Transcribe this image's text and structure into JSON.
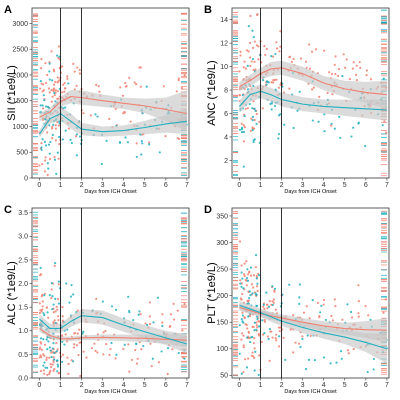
{
  "chart_data": [
    {
      "type": "scatter",
      "panel_label": "A",
      "ylabel": "SII (*1e9/L)",
      "xlabel": "Days from ICH Onset",
      "xlim": [
        -0.35,
        7.1
      ],
      "ylim": [
        0,
        3300
      ],
      "xticks": [
        "0",
        "1",
        "2",
        "3",
        "4",
        "5",
        "6",
        "7"
      ],
      "yticks": [
        "0",
        "500",
        "1000",
        "1500",
        "2000",
        "2500",
        "3000"
      ],
      "ytick_values": [
        0,
        500,
        1000,
        1500,
        2000,
        2500,
        3000
      ],
      "vlines": [
        1,
        2
      ],
      "grid": false,
      "band_color": "#c8c8c8",
      "series": [
        {
          "color": "#f08070",
          "x": [
            0,
            0.5,
            1,
            1.5,
            2,
            3,
            4,
            5,
            6,
            7
          ],
          "y": [
            1180,
            1280,
            1480,
            1580,
            1560,
            1500,
            1450,
            1400,
            1330,
            1250
          ],
          "lower": [
            1100,
            1200,
            1380,
            1450,
            1420,
            1380,
            1340,
            1260,
            1100,
            900
          ],
          "upper": [
            1260,
            1360,
            1580,
            1710,
            1700,
            1620,
            1560,
            1540,
            1560,
            1700
          ]
        },
        {
          "color": "#20b0c0",
          "x": [
            0,
            0.5,
            1,
            1.5,
            2,
            3,
            4,
            5,
            6,
            7
          ],
          "y": [
            850,
            1150,
            1250,
            1100,
            950,
            900,
            920,
            980,
            1050,
            1100
          ],
          "lower": [
            780,
            1050,
            1120,
            950,
            830,
            800,
            820,
            850,
            880,
            850
          ],
          "upper": [
            920,
            1250,
            1380,
            1250,
            1070,
            1000,
            1020,
            1110,
            1220,
            1350
          ]
        }
      ],
      "point_seed": 11
    },
    {
      "type": "scatter",
      "panel_label": "B",
      "ylabel": "ANC (*1e9/L)",
      "xlabel": "Days from ICH Onset",
      "xlim": [
        -0.35,
        7.1
      ],
      "ylim": [
        0.5,
        15
      ],
      "xticks": [
        "0",
        "1",
        "2",
        "3",
        "4",
        "5",
        "6",
        "7"
      ],
      "yticks": [
        "2",
        "4",
        "6",
        "8",
        "10",
        "12",
        "14"
      ],
      "ytick_values": [
        2,
        4,
        6,
        8,
        10,
        12,
        14
      ],
      "vlines": [
        1,
        2
      ],
      "grid": false,
      "band_color": "#c8c8c8",
      "series": [
        {
          "color": "#f08070",
          "x": [
            0,
            0.5,
            1,
            1.5,
            2,
            3,
            4,
            5,
            6,
            7
          ],
          "y": [
            8.3,
            8.8,
            9.4,
            9.8,
            9.9,
            9.4,
            8.6,
            8.1,
            7.8,
            7.6
          ],
          "lower": [
            7.9,
            8.3,
            8.9,
            9.2,
            9.3,
            8.8,
            8.0,
            7.4,
            6.9,
            6.4
          ],
          "upper": [
            8.7,
            9.3,
            9.9,
            10.4,
            10.5,
            10.0,
            9.2,
            8.8,
            8.7,
            8.8
          ]
        },
        {
          "color": "#20b0c0",
          "x": [
            0,
            0.5,
            1,
            1.5,
            2,
            3,
            4,
            5,
            6,
            7
          ],
          "y": [
            6.6,
            7.6,
            7.9,
            7.6,
            7.2,
            6.8,
            6.6,
            6.5,
            6.4,
            6.3
          ],
          "lower": [
            6.1,
            7.0,
            7.3,
            7.0,
            6.6,
            6.2,
            6.0,
            5.8,
            5.6,
            5.4
          ],
          "upper": [
            7.1,
            8.2,
            8.5,
            8.2,
            7.8,
            7.4,
            7.2,
            7.2,
            7.2,
            7.2
          ]
        }
      ],
      "point_seed": 23
    },
    {
      "type": "scatter",
      "panel_label": "C",
      "ylabel": "ALC (*1e9/L)",
      "xlabel": "Days from ICH Onset",
      "xlim": [
        -0.35,
        7.1
      ],
      "ylim": [
        0,
        3.6
      ],
      "xticks": [
        "0",
        "1",
        "2",
        "3",
        "4",
        "5",
        "6",
        "7"
      ],
      "yticks": [
        "0.0",
        "0.5",
        "1.0",
        "1.5",
        "2.0",
        "2.5",
        "3.0",
        "3.5"
      ],
      "ytick_values": [
        0,
        0.5,
        1.0,
        1.5,
        2.0,
        2.5,
        3.0,
        3.5
      ],
      "vlines": [
        1,
        2
      ],
      "grid": false,
      "band_color": "#c8c8c8",
      "series": [
        {
          "color": "#f08070",
          "x": [
            0,
            0.5,
            1,
            1.5,
            2,
            3,
            4,
            5,
            6,
            7
          ],
          "y": [
            1.05,
            0.9,
            0.83,
            0.83,
            0.85,
            0.86,
            0.85,
            0.84,
            0.82,
            0.8
          ],
          "lower": [
            0.98,
            0.85,
            0.78,
            0.78,
            0.8,
            0.8,
            0.78,
            0.76,
            0.72,
            0.65
          ],
          "upper": [
            1.12,
            0.95,
            0.88,
            0.88,
            0.9,
            0.92,
            0.92,
            0.92,
            0.92,
            0.95
          ]
        },
        {
          "color": "#20b0c0",
          "x": [
            0,
            0.5,
            1,
            1.5,
            2,
            3,
            4,
            5,
            6,
            7
          ],
          "y": [
            1.25,
            1.05,
            1.05,
            1.2,
            1.32,
            1.28,
            1.12,
            0.98,
            0.85,
            0.72
          ],
          "lower": [
            1.15,
            0.95,
            0.95,
            1.08,
            1.18,
            1.13,
            0.98,
            0.84,
            0.7,
            0.52
          ],
          "upper": [
            1.35,
            1.15,
            1.15,
            1.32,
            1.46,
            1.43,
            1.26,
            1.12,
            1.0,
            0.92
          ]
        }
      ],
      "point_seed": 37
    },
    {
      "type": "scatter",
      "panel_label": "D",
      "ylabel": "PLT (*1e9/L)",
      "xlabel": "Days from ICH Onset",
      "xlim": [
        -0.35,
        7.1
      ],
      "ylim": [
        45,
        365
      ],
      "xticks": [
        "0",
        "1",
        "2",
        "3",
        "4",
        "5",
        "6",
        "7"
      ],
      "yticks": [
        "50",
        "100",
        "150",
        "200",
        "250",
        "300",
        "350"
      ],
      "ytick_values": [
        50,
        100,
        150,
        200,
        250,
        300,
        350
      ],
      "vlines": [
        1,
        2
      ],
      "grid": false,
      "band_color": "#c8c8c8",
      "series": [
        {
          "color": "#f08070",
          "x": [
            0,
            0.5,
            1,
            1.5,
            2,
            3,
            4,
            5,
            6,
            7
          ],
          "y": [
            178,
            172,
            166,
            162,
            158,
            150,
            143,
            138,
            136,
            135
          ],
          "lower": [
            172,
            166,
            160,
            155,
            151,
            142,
            134,
            127,
            120,
            112
          ],
          "upper": [
            184,
            178,
            172,
            169,
            165,
            158,
            152,
            149,
            152,
            158
          ]
        },
        {
          "color": "#20b0c0",
          "x": [
            0,
            0.5,
            1,
            1.5,
            2,
            3,
            4,
            5,
            6,
            7
          ],
          "y": [
            182,
            175,
            168,
            160,
            152,
            140,
            130,
            122,
            112,
            100
          ],
          "lower": [
            174,
            167,
            160,
            151,
            143,
            130,
            119,
            109,
            94,
            72
          ],
          "upper": [
            190,
            183,
            176,
            169,
            161,
            150,
            141,
            135,
            130,
            128
          ]
        }
      ],
      "point_seed": 53
    }
  ]
}
